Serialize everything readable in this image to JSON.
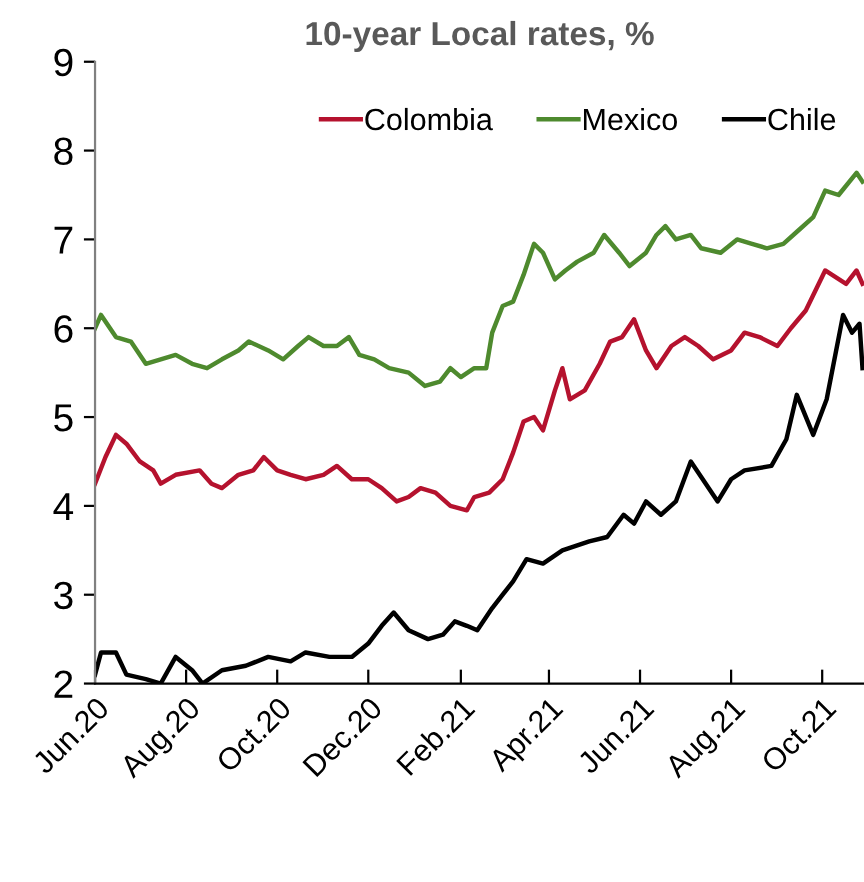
{
  "chart_data": {
    "type": "line",
    "title": "10-year Local rates, %",
    "xlim": [
      "2020-06-01",
      "2021-10-29"
    ],
    "xticks": [
      {
        "value": "2020-06-01",
        "label": "Jun.20"
      },
      {
        "value": "2020-08-01",
        "label": "Aug.20"
      },
      {
        "value": "2020-10-01",
        "label": "Oct.20"
      },
      {
        "value": "2020-12-01",
        "label": "Dec.20"
      },
      {
        "value": "2021-02-01",
        "label": "Feb.21"
      },
      {
        "value": "2021-04-01",
        "label": "Apr.21"
      },
      {
        "value": "2021-06-01",
        "label": "Jun.21"
      },
      {
        "value": "2021-08-01",
        "label": "Aug.21"
      },
      {
        "value": "2021-10-01",
        "label": "Oct.21"
      }
    ],
    "ylim": [
      2,
      9
    ],
    "yticks": [
      2,
      3,
      4,
      5,
      6,
      7,
      8,
      9
    ],
    "legend": "top right",
    "grid": false,
    "series": [
      {
        "name": "Colombia",
        "color": "#b5122e",
        "x": [
          "2020-06-01",
          "2020-06-08",
          "2020-06-15",
          "2020-06-22",
          "2020-07-01",
          "2020-07-10",
          "2020-07-15",
          "2020-07-25",
          "2020-08-10",
          "2020-08-18",
          "2020-08-25",
          "2020-09-05",
          "2020-09-15",
          "2020-09-22",
          "2020-10-01",
          "2020-10-10",
          "2020-10-20",
          "2020-11-01",
          "2020-11-10",
          "2020-11-20",
          "2020-12-01",
          "2020-12-10",
          "2020-12-20",
          "2020-12-28",
          "2021-01-05",
          "2021-01-15",
          "2021-01-25",
          "2021-02-05",
          "2021-02-10",
          "2021-02-20",
          "2021-03-01",
          "2021-03-08",
          "2021-03-15",
          "2021-03-22",
          "2021-03-28",
          "2021-04-05",
          "2021-04-10",
          "2021-04-15",
          "2021-04-25",
          "2021-05-05",
          "2021-05-12",
          "2021-05-20",
          "2021-05-28",
          "2021-06-05",
          "2021-06-12",
          "2021-06-22",
          "2021-07-01",
          "2021-07-10",
          "2021-07-20",
          "2021-08-01",
          "2021-08-10",
          "2021-08-20",
          "2021-09-01",
          "2021-09-10",
          "2021-09-20",
          "2021-10-03",
          "2021-10-17",
          "2021-10-24",
          "2021-10-28"
        ],
        "values": [
          4.25,
          4.55,
          4.8,
          4.7,
          4.5,
          4.4,
          4.25,
          4.35,
          4.4,
          4.25,
          4.2,
          4.35,
          4.4,
          4.55,
          4.4,
          4.35,
          4.3,
          4.35,
          4.45,
          4.3,
          4.3,
          4.2,
          4.05,
          4.1,
          4.2,
          4.15,
          4.0,
          3.95,
          4.1,
          4.15,
          4.3,
          4.6,
          4.95,
          5.0,
          4.85,
          5.3,
          5.55,
          5.2,
          5.3,
          5.6,
          5.85,
          5.9,
          6.1,
          5.75,
          5.55,
          5.8,
          5.9,
          5.8,
          5.65,
          5.75,
          5.95,
          5.9,
          5.8,
          6.0,
          6.2,
          6.65,
          6.5,
          6.65,
          6.5
        ]
      },
      {
        "name": "Mexico",
        "color": "#4e8a2e",
        "x": [
          "2020-06-01",
          "2020-06-05",
          "2020-06-15",
          "2020-06-25",
          "2020-07-05",
          "2020-07-15",
          "2020-07-25",
          "2020-08-05",
          "2020-08-15",
          "2020-08-25",
          "2020-09-05",
          "2020-09-12",
          "2020-09-25",
          "2020-10-05",
          "2020-10-15",
          "2020-10-22",
          "2020-11-01",
          "2020-11-10",
          "2020-11-18",
          "2020-11-25",
          "2020-12-05",
          "2020-12-15",
          "2020-12-28",
          "2021-01-08",
          "2021-01-18",
          "2021-01-25",
          "2021-02-01",
          "2021-02-10",
          "2021-02-18",
          "2021-02-22",
          "2021-03-01",
          "2021-03-08",
          "2021-03-15",
          "2021-03-22",
          "2021-03-28",
          "2021-04-05",
          "2021-04-12",
          "2021-04-20",
          "2021-05-01",
          "2021-05-08",
          "2021-05-18",
          "2021-05-25",
          "2021-06-05",
          "2021-06-12",
          "2021-06-18",
          "2021-06-25",
          "2021-07-05",
          "2021-07-12",
          "2021-07-25",
          "2021-08-05",
          "2021-08-15",
          "2021-08-25",
          "2021-09-05",
          "2021-09-15",
          "2021-09-25",
          "2021-10-03",
          "2021-10-12",
          "2021-10-24",
          "2021-10-28"
        ],
        "values": [
          6.0,
          6.15,
          5.9,
          5.85,
          5.6,
          5.65,
          5.7,
          5.6,
          5.55,
          5.65,
          5.75,
          5.85,
          5.75,
          5.65,
          5.8,
          5.9,
          5.8,
          5.8,
          5.9,
          5.7,
          5.65,
          5.55,
          5.5,
          5.35,
          5.4,
          5.55,
          5.45,
          5.55,
          5.55,
          5.95,
          6.25,
          6.3,
          6.6,
          6.95,
          6.85,
          6.55,
          6.65,
          6.75,
          6.85,
          7.05,
          6.85,
          6.7,
          6.85,
          7.05,
          7.15,
          7.0,
          7.05,
          6.9,
          6.85,
          7.0,
          6.95,
          6.9,
          6.95,
          7.1,
          7.25,
          7.55,
          7.5,
          7.75,
          7.65
        ]
      },
      {
        "name": "Chile",
        "color": "#000000",
        "x": [
          "2020-06-01",
          "2020-06-05",
          "2020-06-15",
          "2020-06-22",
          "2020-07-05",
          "2020-07-15",
          "2020-07-25",
          "2020-08-05",
          "2020-08-12",
          "2020-08-25",
          "2020-09-10",
          "2020-09-25",
          "2020-10-10",
          "2020-10-20",
          "2020-11-05",
          "2020-11-20",
          "2020-12-01",
          "2020-12-10",
          "2020-12-18",
          "2020-12-28",
          "2021-01-10",
          "2021-01-20",
          "2021-01-28",
          "2021-02-05",
          "2021-02-12",
          "2021-02-22",
          "2021-03-01",
          "2021-03-08",
          "2021-03-17",
          "2021-03-28",
          "2021-04-10",
          "2021-04-28",
          "2021-05-10",
          "2021-05-21",
          "2021-05-28",
          "2021-06-05",
          "2021-06-15",
          "2021-06-25",
          "2021-07-05",
          "2021-07-23",
          "2021-08-01",
          "2021-08-10",
          "2021-08-28",
          "2021-09-07",
          "2021-09-14",
          "2021-09-25",
          "2021-10-04",
          "2021-10-15",
          "2021-10-21",
          "2021-10-26",
          "2021-10-28"
        ],
        "values": [
          2.1,
          2.35,
          2.35,
          2.1,
          2.05,
          2.0,
          2.3,
          2.15,
          2.0,
          2.15,
          2.2,
          2.3,
          2.25,
          2.35,
          2.3,
          2.3,
          2.45,
          2.65,
          2.8,
          2.6,
          2.5,
          2.55,
          2.7,
          2.65,
          2.6,
          2.85,
          3.0,
          3.15,
          3.4,
          3.35,
          3.5,
          3.6,
          3.65,
          3.9,
          3.8,
          4.05,
          3.9,
          4.05,
          4.5,
          4.05,
          4.3,
          4.4,
          4.45,
          4.75,
          5.25,
          4.8,
          5.2,
          6.15,
          5.95,
          6.05,
          5.55
        ]
      }
    ]
  }
}
